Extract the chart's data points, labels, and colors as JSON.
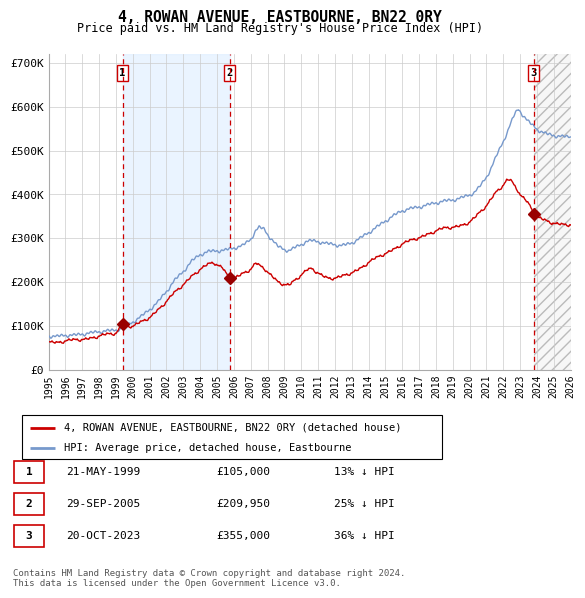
{
  "title": "4, ROWAN AVENUE, EASTBOURNE, BN22 0RY",
  "subtitle": "Price paid vs. HM Land Registry's House Price Index (HPI)",
  "ylim": [
    0,
    720000
  ],
  "yticks": [
    0,
    100000,
    200000,
    300000,
    400000,
    500000,
    600000,
    700000
  ],
  "ytick_labels": [
    "£0",
    "£100K",
    "£200K",
    "£300K",
    "£400K",
    "£500K",
    "£600K",
    "£700K"
  ],
  "grid_color": "#cccccc",
  "hpi_line_color": "#7799cc",
  "price_line_color": "#cc0000",
  "sale_marker_color": "#990000",
  "sale1_date": 1999.39,
  "sale1_price": 105000,
  "sale2_date": 2005.75,
  "sale2_price": 209950,
  "sale3_date": 2023.8,
  "sale3_price": 355000,
  "vline_color": "#cc0000",
  "shade_color": "#ddeeff",
  "legend_labels": [
    "4, ROWAN AVENUE, EASTBOURNE, BN22 0RY (detached house)",
    "HPI: Average price, detached house, Eastbourne"
  ],
  "table_data": [
    [
      "1",
      "21-MAY-1999",
      "£105,000",
      "13% ↓ HPI"
    ],
    [
      "2",
      "29-SEP-2005",
      "£209,950",
      "25% ↓ HPI"
    ],
    [
      "3",
      "20-OCT-2023",
      "£355,000",
      "36% ↓ HPI"
    ]
  ],
  "footer_text": "Contains HM Land Registry data © Crown copyright and database right 2024.\nThis data is licensed under the Open Government Licence v3.0.",
  "xstart": 1995.0,
  "xend": 2026.0
}
